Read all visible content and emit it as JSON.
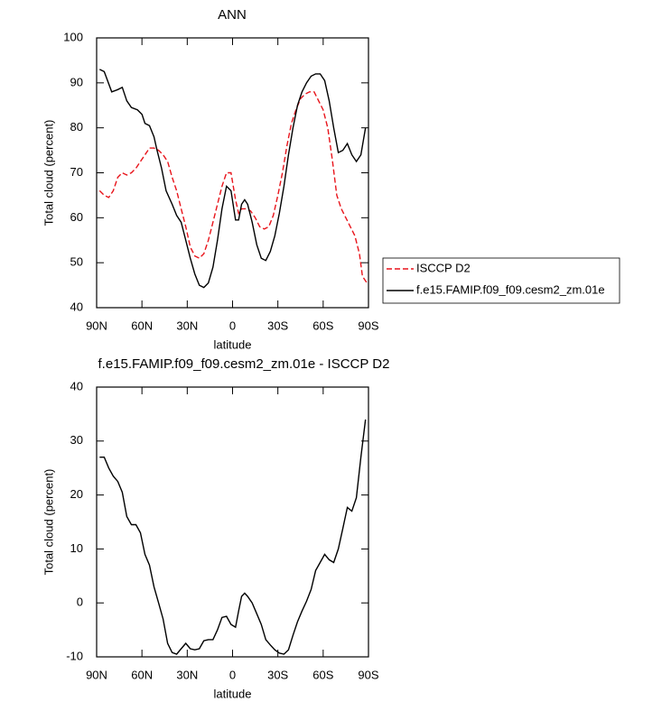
{
  "chart_data": [
    {
      "type": "line",
      "title": "ANN",
      "x_label": "latitude",
      "y_label": "Total cloud (percent)",
      "xlim": [
        90,
        -90
      ],
      "ylim": [
        40,
        100
      ],
      "xticks": [
        {
          "value": 90,
          "label": "90N"
        },
        {
          "value": 60,
          "label": "60N"
        },
        {
          "value": 30,
          "label": "30N"
        },
        0,
        {
          "value": -30,
          "label": "30S"
        },
        {
          "value": -60,
          "label": "60S"
        },
        {
          "value": -90,
          "label": "90S"
        }
      ],
      "yticks": [
        40,
        50,
        60,
        70,
        80,
        90,
        100
      ],
      "legend": "outside-right",
      "series": [
        {
          "name": "ISCCP D2",
          "color": "#e8141b",
          "dash": true,
          "x": [
            88,
            85,
            82,
            79,
            76,
            73,
            70,
            67,
            64,
            61,
            58,
            55,
            52,
            49,
            46,
            43,
            40,
            37,
            34,
            31,
            28,
            25,
            22,
            19,
            16,
            13,
            10,
            7,
            4,
            1,
            -2,
            -4,
            -6,
            -9,
            -12,
            -15,
            -18,
            -21,
            -24,
            -27,
            -30,
            -33,
            -36,
            -39,
            -42,
            -45,
            -48,
            -51,
            -54,
            -57,
            -60,
            -63,
            -66,
            -69,
            -72,
            -75,
            -78,
            -81,
            -84,
            -86,
            -89
          ],
          "values": [
            66,
            65,
            64.5,
            66,
            69,
            70,
            69.5,
            70,
            71,
            72.5,
            74,
            75.5,
            75.5,
            75,
            74,
            72.5,
            69,
            66,
            62,
            58,
            53.5,
            51.5,
            51,
            52,
            55,
            59,
            63,
            67,
            70,
            70,
            64,
            61,
            62,
            62,
            61.5,
            60,
            58,
            57.5,
            58,
            60.5,
            65,
            70,
            76,
            81,
            84,
            86.5,
            87.5,
            88,
            88,
            86,
            84,
            80,
            73,
            65,
            62,
            60,
            58,
            56,
            52,
            47,
            45.5
          ]
        },
        {
          "name": "f.e15.FAMIP.f09_f09.cesm2_zm.01e",
          "color": "#000000",
          "dash": false,
          "x": [
            88,
            85,
            80,
            76,
            73,
            70,
            67,
            63,
            60,
            58,
            55,
            52,
            50,
            47,
            44,
            40,
            37,
            34,
            31,
            28,
            25,
            22,
            19,
            16,
            13,
            10,
            7,
            4,
            1,
            -2,
            -4,
            -6,
            -8,
            -10,
            -13,
            -16,
            -19,
            -22,
            -25,
            -28,
            -31,
            -34,
            -37,
            -40,
            -43,
            -46,
            -49,
            -52,
            -55,
            -58,
            -61,
            -64,
            -67,
            -70,
            -73,
            -76,
            -79,
            -82,
            -85,
            -88
          ],
          "values": [
            93,
            92.5,
            88,
            88.5,
            89,
            86,
            84.5,
            84,
            83,
            81,
            80.5,
            78,
            75,
            71,
            66,
            63,
            60.5,
            59,
            55,
            51,
            47.5,
            45,
            44.5,
            45.5,
            49,
            55,
            62,
            67,
            66,
            59.5,
            59.5,
            63,
            64,
            63,
            59,
            54,
            51,
            50.5,
            52.5,
            56,
            61,
            67,
            74,
            80,
            85,
            88,
            90,
            91.5,
            92,
            92,
            90.5,
            86,
            80,
            74.5,
            75,
            76.5,
            74,
            72.5,
            74,
            80
          ]
        }
      ]
    },
    {
      "type": "line",
      "title": "f.e15.FAMIP.f09_f09.cesm2_zm.01e - ISCCP D2",
      "x_label": "latitude",
      "y_label": "Total cloud (percent)",
      "xlim": [
        90,
        -90
      ],
      "ylim": [
        -10,
        40
      ],
      "xticks": [
        {
          "value": 90,
          "label": "90N"
        },
        {
          "value": 60,
          "label": "60N"
        },
        {
          "value": 30,
          "label": "30N"
        },
        0,
        {
          "value": -30,
          "label": "30S"
        },
        {
          "value": -60,
          "label": "60S"
        },
        {
          "value": -90,
          "label": "90S"
        }
      ],
      "yticks": [
        -10,
        0,
        10,
        20,
        30,
        40
      ],
      "color": "#000000",
      "x": [
        88,
        85,
        82,
        79,
        76,
        73,
        70,
        67,
        64,
        61,
        58,
        55,
        52,
        49,
        46,
        43,
        40,
        37,
        34,
        31,
        28,
        25,
        22,
        19,
        16,
        13,
        10,
        7,
        4,
        1,
        -2,
        -4,
        -6,
        -8,
        -10,
        -13,
        -16,
        -19,
        -22,
        -25,
        -28,
        -31,
        -34,
        -37,
        -40,
        -43,
        -46,
        -49,
        -52,
        -55,
        -58,
        -61,
        -64,
        -67,
        -70,
        -73,
        -76,
        -79,
        -82,
        -85,
        -88
      ],
      "values": [
        27,
        27,
        25,
        23.5,
        22.5,
        20.5,
        16,
        14.5,
        14.5,
        13,
        9,
        7,
        3,
        0,
        -3,
        -7.5,
        -9.2,
        -9.5,
        -8.5,
        -7.5,
        -8.5,
        -8.7,
        -8.5,
        -7,
        -6.8,
        -6.8,
        -5,
        -2.7,
        -2.5,
        -4,
        -4.5,
        -1.5,
        1.2,
        1.8,
        1.2,
        0,
        -2,
        -4,
        -6.8,
        -7.8,
        -8.7,
        -9.3,
        -9.5,
        -8.7,
        -6,
        -3.5,
        -1.5,
        0.3,
        2.5,
        6,
        7.5,
        9,
        8,
        7.5,
        10,
        13.8,
        17.7,
        17,
        19.5,
        27,
        34
      ]
    }
  ]
}
